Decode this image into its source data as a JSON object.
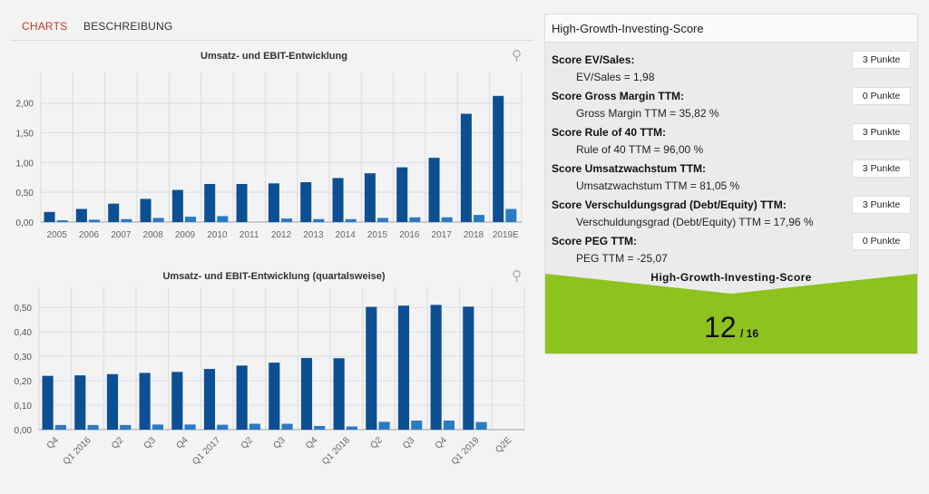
{
  "tabs": {
    "charts": "CHARTS",
    "description": "BESCHREIBUNG"
  },
  "colors": {
    "revenue": "#0d4f93",
    "ebit": "#2b7bc4",
    "score_green": "#8dc21f",
    "tab_active": "#c0392b"
  },
  "icons": {
    "zoom": "search-icon"
  },
  "chart_data": [
    {
      "type": "bar",
      "title": "Umsatz- und EBIT-Entwicklung",
      "categories": [
        "2005",
        "2006",
        "2007",
        "2008",
        "2009",
        "2010",
        "2011",
        "2012",
        "2013",
        "2014",
        "2015",
        "2016",
        "2017",
        "2018",
        "2019E"
      ],
      "series": [
        {
          "values": [
            0.17,
            0.22,
            0.31,
            0.39,
            0.54,
            0.64,
            0.64,
            0.65,
            0.67,
            0.74,
            0.82,
            0.92,
            1.08,
            1.82,
            2.12
          ]
        },
        {
          "values": [
            0.03,
            0.04,
            0.05,
            0.07,
            0.09,
            0.1,
            0.0,
            0.06,
            0.05,
            0.05,
            0.07,
            0.08,
            0.08,
            0.12,
            0.22
          ]
        }
      ],
      "yticks": [
        "0,00",
        "0,50",
        "1,00",
        "1,50",
        "2,00"
      ],
      "ylim": [
        0,
        2.3
      ],
      "grid": true
    },
    {
      "type": "bar",
      "title": "Umsatz- und EBIT-Entwicklung (quartalsweise)",
      "categories": [
        "Q4",
        "Q1 2016",
        "Q2",
        "Q3",
        "Q4",
        "Q1 2017",
        "Q2",
        "Q3",
        "Q4",
        "Q1 2018",
        "Q2",
        "Q3",
        "Q4",
        "Q1 2019",
        "Q2E"
      ],
      "series": [
        {
          "values": [
            0.22,
            0.222,
            0.227,
            0.232,
            0.236,
            0.248,
            0.262,
            0.274,
            0.293,
            0.292,
            0.502,
            0.507,
            0.51,
            0.503,
            null
          ]
        },
        {
          "values": [
            0.019,
            0.019,
            0.019,
            0.021,
            0.021,
            0.02,
            0.024,
            0.024,
            0.015,
            0.013,
            0.032,
            0.037,
            0.037,
            0.031,
            null
          ]
        }
      ],
      "yticks": [
        "0,00",
        "0,10",
        "0,20",
        "0,30",
        "0,40",
        "0,50"
      ],
      "ylim": [
        0,
        0.53
      ],
      "grid": true
    }
  ],
  "score_panel": {
    "title": "High-Growth-Investing-Score",
    "items": [
      {
        "label": "Score EV/Sales:",
        "value": "EV/Sales = 1,98",
        "points": "3 Punkte"
      },
      {
        "label": "Score Gross Margin TTM:",
        "value": "Gross Margin TTM = 35,82 %",
        "points": "0 Punkte"
      },
      {
        "label": "Score Rule of 40 TTM:",
        "value": "Rule of 40 TTM = 96,00 %",
        "points": "3 Punkte"
      },
      {
        "label": "Score Umsatzwachstum TTM:",
        "value": "Umsatzwachstum TTM = 81,05 %",
        "points": "3 Punkte"
      },
      {
        "label": "Score Verschuldungsgrad (Debt/Equity) TTM:",
        "value": "Verschuldungsgrad (Debt/Equity) TTM = 17,96 %",
        "points": "3 Punkte"
      },
      {
        "label": "Score PEG TTM:",
        "value": "PEG TTM = -25,07",
        "points": "0 Punkte"
      }
    ],
    "summary_title": "High-Growth-Investing-Score",
    "score": "12",
    "score_max": "/ 16"
  }
}
